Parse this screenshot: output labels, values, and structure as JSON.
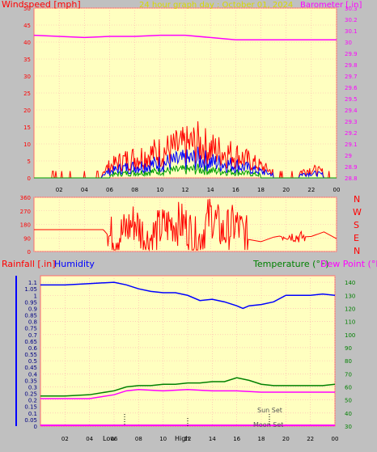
{
  "header": {
    "windspeed_label": "Windspeed [mph]",
    "title": "24 hour graph day : October 01, 2024",
    "barometer_label": "Barometer [.in]"
  },
  "lower_header": {
    "rainfall_label": "Rainfall [.in]",
    "humidity_label": "Humidity",
    "temperature_label": "Temperature (°F)",
    "dewpoint_label": "Dew Point (°F)"
  },
  "direction_labels": [
    "N",
    "W",
    "S",
    "E",
    "N"
  ],
  "events": {
    "low": "Low",
    "high": "High",
    "sun_set": "Sun Set",
    "moon_set": "Moon Set"
  },
  "colors": {
    "plot_bg": "#ffffc0",
    "wind_gust": "#ff0000",
    "wind_avg": "#0000ff",
    "wind_low": "#00a000",
    "barometer": "#ff00ff",
    "direction": "#ff0000",
    "humidity": "#0000ff",
    "temperature": "#008000",
    "dewpoint": "#ff00ff",
    "title": "#d8d800"
  },
  "chart_data": [
    {
      "type": "line",
      "title": "24 hour graph day : October 01, 2024",
      "x_ticks": [
        "02",
        "04",
        "06",
        "08",
        "10",
        "12",
        "14",
        "16",
        "18",
        "20",
        "22",
        "00"
      ],
      "y_left": {
        "label": "Windspeed [mph]",
        "ticks": [
          "0",
          "5",
          "10",
          "15",
          "20",
          "25",
          "30",
          "35",
          "40",
          "45",
          "50"
        ],
        "lim": [
          0,
          50
        ]
      },
      "y_right": {
        "label": "Barometer [.in]",
        "ticks": [
          "28.8",
          "28.9",
          "29",
          "29.1",
          "29.2",
          "29.3",
          "29.4",
          "29.5",
          "29.6",
          "29.7",
          "29.8",
          "29.9",
          "30",
          "30.1",
          "30.2",
          "30.3"
        ],
        "lim": [
          28.8,
          30.3
        ]
      },
      "series": [
        {
          "name": "Barometer [.in]",
          "axis": "right",
          "x": [
            0,
            2,
            4,
            6,
            8,
            10,
            12,
            14,
            16,
            18,
            20,
            22,
            24
          ],
          "values": [
            30.06,
            30.05,
            30.04,
            30.05,
            30.05,
            30.06,
            30.06,
            30.04,
            30.02,
            30.02,
            30.02,
            30.02,
            30.02
          ]
        },
        {
          "name": "Windspeed [mph]",
          "axis": "left",
          "x": [
            0,
            2,
            4,
            5,
            6,
            7,
            8,
            9,
            10,
            11,
            12,
            13,
            14,
            15,
            16,
            17,
            18,
            19,
            20,
            21,
            22,
            23,
            24
          ],
          "values": [
            0.5,
            1,
            0.5,
            1,
            4,
            6,
            7,
            8,
            9,
            10,
            11,
            12,
            10,
            9,
            8,
            6,
            4,
            2,
            2,
            2,
            3,
            2,
            1
          ]
        }
      ]
    },
    {
      "type": "scatter",
      "x_ticks": [
        "02",
        "04",
        "06",
        "08",
        "10",
        "12",
        "14",
        "16",
        "18",
        "20",
        "22",
        "00"
      ],
      "y_left": {
        "ticks": [
          "0",
          "90",
          "180",
          "270",
          "360"
        ],
        "lim": [
          0,
          360
        ]
      },
      "series": [
        {
          "name": "Wind direction",
          "x": [
            0,
            2,
            4,
            5.5,
            6,
            7,
            8,
            9,
            10,
            11,
            12,
            13,
            14,
            15,
            16,
            17,
            18,
            19,
            20,
            21,
            22,
            23,
            24
          ],
          "values": [
            145,
            145,
            145,
            145,
            95,
            120,
            200,
            70,
            150,
            190,
            180,
            60,
            250,
            120,
            180,
            80,
            65,
            95,
            110,
            95,
            100,
            130,
            85
          ]
        }
      ]
    },
    {
      "type": "line",
      "x_ticks": [
        "02",
        "04",
        "06",
        "08",
        "10",
        "12",
        "14",
        "16",
        "18",
        "20",
        "22",
        "00"
      ],
      "y_left": {
        "label": "Rainfall [.in]",
        "ticks": [
          "0",
          "0.05",
          "0.1",
          "0.15",
          "0.2",
          "0.25",
          "0.3",
          "0.35",
          "0.4",
          "0.45",
          "0.5",
          "0.55",
          "0.6",
          "0.65",
          "0.7",
          "0.75",
          "0.8",
          "0.85",
          "0.9",
          "0.95",
          "1",
          "1.05",
          "1.1"
        ],
        "lim": [
          0,
          1.15
        ]
      },
      "y_right": {
        "label": "Temperature (°F)",
        "ticks": [
          "30",
          "40",
          "50",
          "60",
          "70",
          "80",
          "90",
          "100",
          "110",
          "120",
          "130",
          "140"
        ],
        "lim": [
          30,
          145
        ]
      },
      "series": [
        {
          "name": "Humidity",
          "axis": "rain",
          "x": [
            0,
            2,
            4,
            6,
            7,
            8,
            9,
            10,
            11,
            12,
            13,
            14,
            15,
            16,
            16.5,
            17,
            18,
            19,
            20,
            21,
            22,
            23,
            24
          ],
          "values": [
            1.08,
            1.08,
            1.09,
            1.1,
            1.08,
            1.05,
            1.03,
            1.02,
            1.02,
            1.0,
            0.96,
            0.97,
            0.95,
            0.92,
            0.9,
            0.92,
            0.93,
            0.95,
            1.0,
            1.0,
            1.0,
            1.01,
            1.0
          ]
        },
        {
          "name": "Temperature (°F)",
          "axis": "right",
          "x": [
            0,
            2,
            4,
            6,
            7,
            8,
            9,
            10,
            11,
            12,
            13,
            14,
            15,
            16,
            17,
            18,
            19,
            20,
            21,
            22,
            23,
            24
          ],
          "values": [
            53,
            53,
            54,
            57,
            60,
            61,
            61,
            62,
            62,
            63,
            63,
            64,
            64,
            67,
            65,
            62,
            61,
            61,
            61,
            61,
            61,
            62
          ]
        },
        {
          "name": "Dew Point (°F)",
          "axis": "right",
          "x": [
            0,
            2,
            4,
            6,
            7,
            8,
            10,
            12,
            14,
            16,
            18,
            20,
            22,
            24
          ],
          "values": [
            51,
            51,
            51,
            54,
            57,
            58,
            57,
            58,
            57,
            57,
            56,
            56,
            56,
            56
          ]
        }
      ]
    }
  ]
}
